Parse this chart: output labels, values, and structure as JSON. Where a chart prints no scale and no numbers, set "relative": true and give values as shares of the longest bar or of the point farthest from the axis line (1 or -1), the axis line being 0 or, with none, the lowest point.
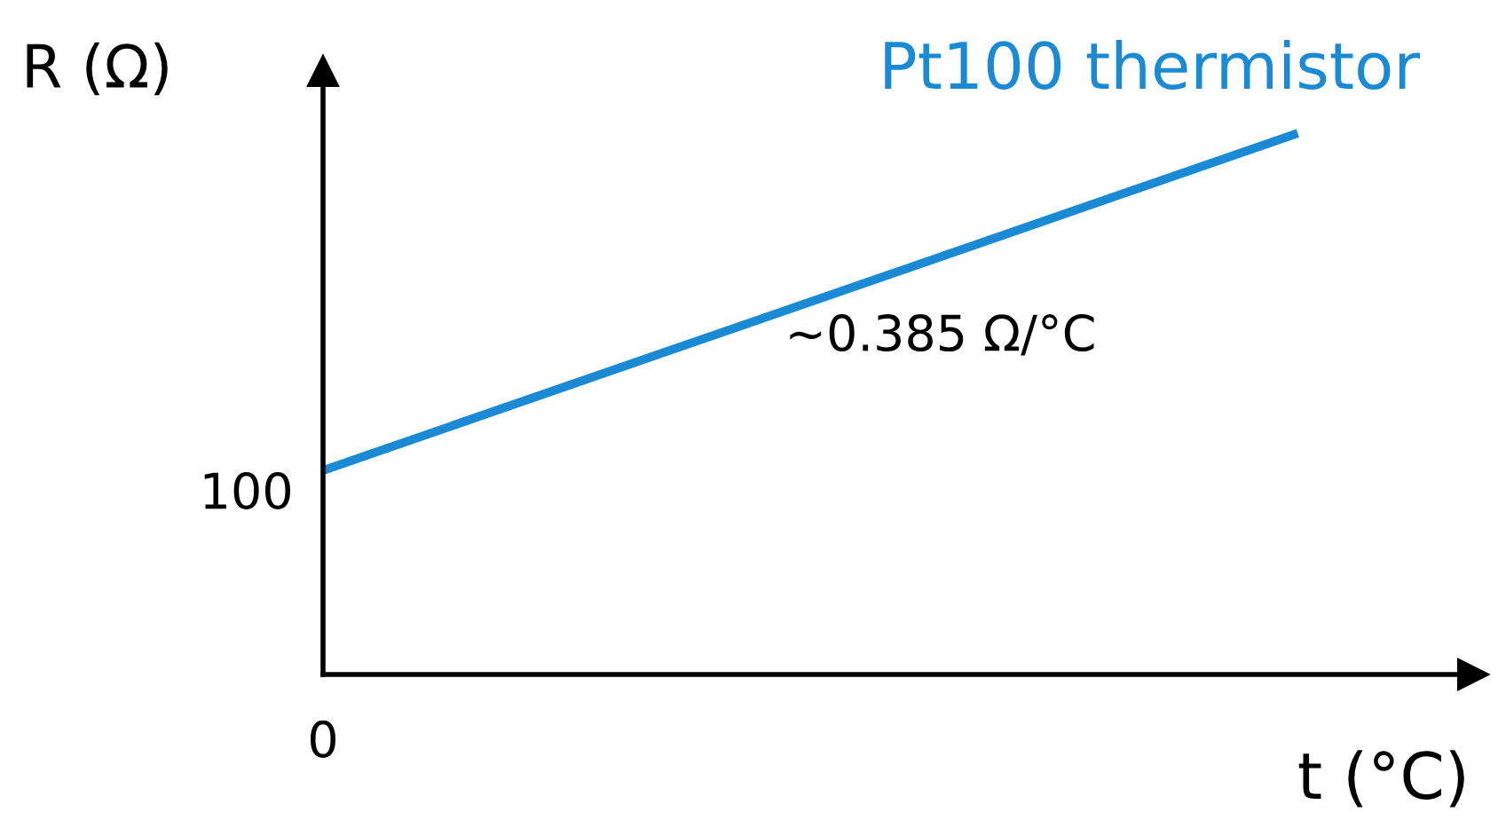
{
  "chart_data": {
    "type": "line",
    "title": "Pt100 thermistor",
    "xlabel": "t (°C)",
    "ylabel": "R (Ω)",
    "relative": true,
    "categories": [
      null,
      null
    ],
    "series": [
      {
        "color": "#1a8ad4",
        "values": [
          0.377,
          1
        ]
      }
    ],
    "annotations": [
      "100",
      "0",
      "~0.385 Ω/°C"
    ],
    "legend": false,
    "marker": "none",
    "line_style": "solid"
  }
}
